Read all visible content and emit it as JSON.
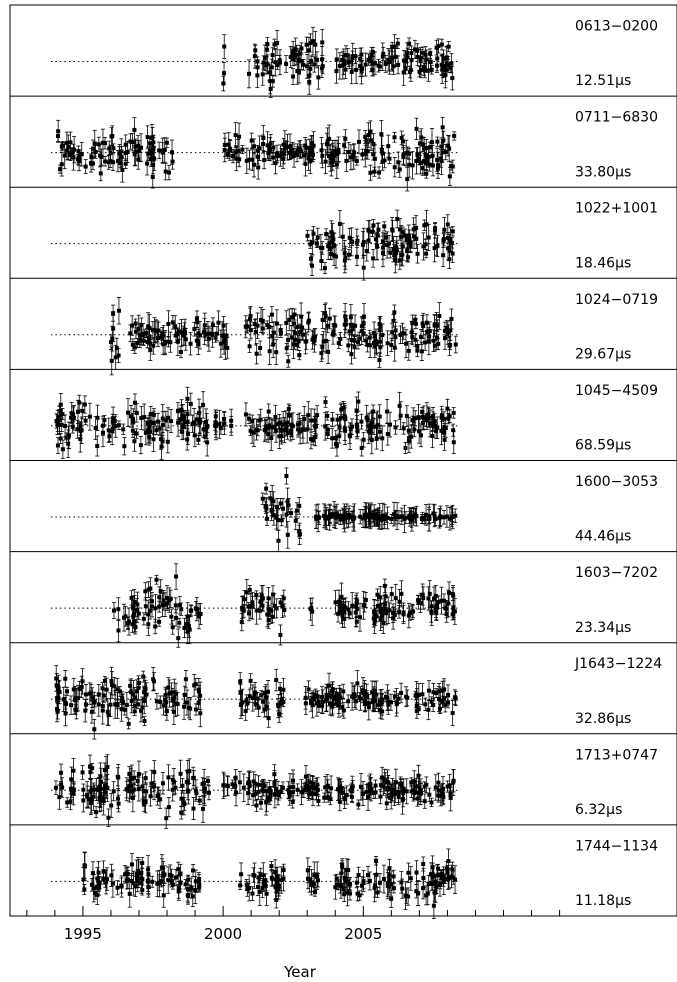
{
  "chart_data": {
    "type": "scatter",
    "xlabel": "Year",
    "xlim": [
      1992.4,
      2012.3
    ],
    "x_ticks": [
      {
        "value": 1995,
        "label": "1995"
      },
      {
        "value": 2000,
        "label": "2000"
      },
      {
        "value": 2005,
        "label": "2005"
      }
    ],
    "grid": false,
    "panels": [
      {
        "name": "0613−0200",
        "scale_value": "12.51",
        "unit": "μs",
        "segments": [
          [
            2000.0,
            2000.0,
            0.55
          ],
          [
            2000.9,
            2003.6,
            0.55
          ],
          [
            2004.0,
            2008.3,
            0.4
          ]
        ]
      },
      {
        "name": "0711−6830",
        "scale_value": "33.80",
        "unit": "μs",
        "segments": [
          [
            1994.1,
            1998.2,
            0.5
          ],
          [
            2000.0,
            2003.3,
            0.35
          ],
          [
            2003.5,
            2008.3,
            0.55
          ]
        ]
      },
      {
        "name": "1022+1001",
        "scale_value": "18.46",
        "unit": "μs",
        "segments": [
          [
            2003.0,
            2008.3,
            0.55
          ]
        ]
      },
      {
        "name": "1024−0719",
        "scale_value": "29.67",
        "unit": "μs",
        "segments": [
          [
            1996.0,
            1996.4,
            0.8
          ],
          [
            1996.6,
            2000.2,
            0.35
          ],
          [
            2000.8,
            2003.3,
            0.45
          ],
          [
            2003.5,
            2008.3,
            0.55
          ]
        ]
      },
      {
        "name": "1045−4509",
        "scale_value": "68.59",
        "unit": "μs",
        "segments": [
          [
            1994.0,
            1999.5,
            0.55
          ],
          [
            1999.7,
            2000.3,
            0.3
          ],
          [
            2000.8,
            2003.5,
            0.35
          ],
          [
            2003.6,
            2008.3,
            0.5
          ]
        ]
      },
      {
        "name": "1600−3053",
        "scale_value": "44.46",
        "unit": "μs",
        "segments": [
          [
            2001.4,
            2002.8,
            0.7
          ],
          [
            2003.3,
            2008.3,
            0.08
          ]
        ]
      },
      {
        "name": "1603−7202",
        "scale_value": "23.34",
        "unit": "μs",
        "segments": [
          [
            1996.1,
            1999.2,
            0.6
          ],
          [
            2000.6,
            2002.2,
            0.45
          ],
          [
            2003.1,
            2003.2,
            0.15
          ],
          [
            2004.0,
            2008.3,
            0.35
          ]
        ]
      },
      {
        "name": "J1643−1224",
        "scale_value": "32.86",
        "unit": "μs",
        "segments": [
          [
            1994.0,
            1999.3,
            0.55
          ],
          [
            2000.6,
            2002.2,
            0.45
          ],
          [
            2002.9,
            2008.3,
            0.3
          ]
        ]
      },
      {
        "name": "1713+0747",
        "scale_value": "6.32",
        "unit": "μs",
        "segments": [
          [
            1994.0,
            1999.5,
            0.55
          ],
          [
            2000.0,
            2003.5,
            0.35
          ],
          [
            2003.6,
            2008.3,
            0.3
          ]
        ]
      },
      {
        "name": "1744−1134",
        "scale_value": "11.18",
        "unit": "μs",
        "segments": [
          [
            1995.0,
            1999.2,
            0.35
          ],
          [
            2000.6,
            2002.2,
            0.35
          ],
          [
            2003.0,
            2003.5,
            0.3
          ],
          [
            2004.0,
            2008.3,
            0.45
          ]
        ]
      }
    ]
  }
}
